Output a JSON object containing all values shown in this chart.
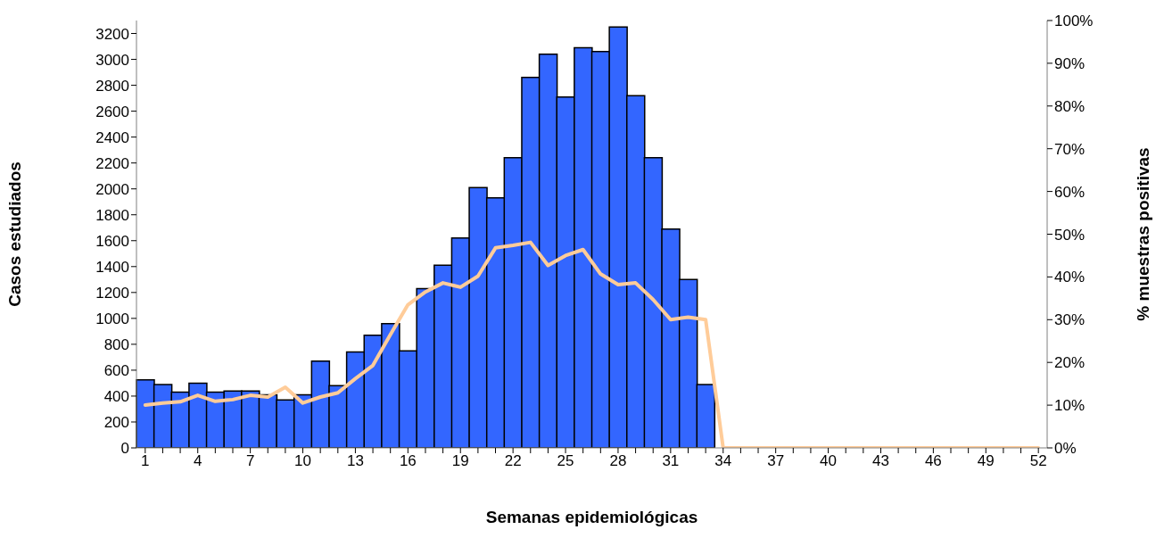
{
  "chart_data": {
    "type": "bar",
    "xlabel": "Semanas epidemiológicas",
    "ylabel": "Casos estudiados",
    "y2label": "% muestras positivas",
    "categories": [
      "1",
      null,
      null,
      "4",
      null,
      null,
      "7",
      null,
      null,
      "10",
      null,
      null,
      "13",
      null,
      null,
      "16",
      null,
      null,
      "19",
      null,
      null,
      "22",
      null,
      null,
      "25",
      null,
      null,
      "28",
      null,
      null,
      "31",
      null,
      null,
      "34",
      null,
      null,
      "37",
      null,
      null,
      "40",
      null,
      null,
      "43",
      null,
      null,
      "46",
      null,
      null,
      "49",
      null,
      null,
      "52"
    ],
    "series": [
      {
        "color": "#3366ff",
        "values": [
          525,
          490,
          430,
          500,
          430,
          440,
          440,
          410,
          370,
          410,
          670,
          480,
          740,
          870,
          960,
          750,
          1230,
          1410,
          1620,
          2010,
          1930,
          2240,
          2860,
          3040,
          2710,
          3090,
          3060,
          3250,
          2720,
          2240,
          1690,
          1300,
          490,
          null,
          null,
          null,
          null,
          null,
          null,
          null,
          null,
          null,
          null,
          null,
          null,
          null,
          null,
          null,
          null,
          null,
          null,
          null
        ]
      },
      {
        "type": "line",
        "axis": "y2",
        "color": "#ffcc99",
        "values": [
          10,
          10.5,
          10.8,
          12.3,
          10.9,
          11.3,
          12.3,
          11.9,
          14.2,
          10.5,
          11.9,
          12.9,
          16.2,
          19.3,
          26.5,
          33.5,
          36.5,
          38.6,
          37.6,
          40.2,
          46.8,
          47.4,
          48.1,
          42.7,
          45,
          46.4,
          40.7,
          38.2,
          38.6,
          34.7,
          30,
          30.6,
          30,
          0,
          0,
          0,
          0,
          0,
          0,
          0,
          0,
          0,
          0,
          0,
          0,
          0,
          0,
          0,
          0,
          0,
          0,
          0
        ]
      }
    ],
    "ylim": [
      0,
      3300
    ],
    "yticks": [
      0,
      200,
      400,
      600,
      800,
      1000,
      1200,
      1400,
      1600,
      1800,
      2000,
      2200,
      2400,
      2600,
      2800,
      3000,
      3200
    ],
    "y2lim": [
      0,
      100
    ],
    "y2ticks": [
      {
        "value": 0,
        "label": "0%"
      },
      {
        "value": 10,
        "label": "10%"
      },
      {
        "value": 20,
        "label": "20%"
      },
      {
        "value": 30,
        "label": "30%"
      },
      {
        "value": 40,
        "label": "40%"
      },
      {
        "value": 50,
        "label": "50%"
      },
      {
        "value": 60,
        "label": "60%"
      },
      {
        "value": 70,
        "label": "70%"
      },
      {
        "value": 80,
        "label": "80%"
      },
      {
        "value": 90,
        "label": "90%"
      },
      {
        "value": 100,
        "label": "100%"
      }
    ],
    "grid": false,
    "legend": false,
    "marker": "none",
    "line_style": "solid"
  }
}
